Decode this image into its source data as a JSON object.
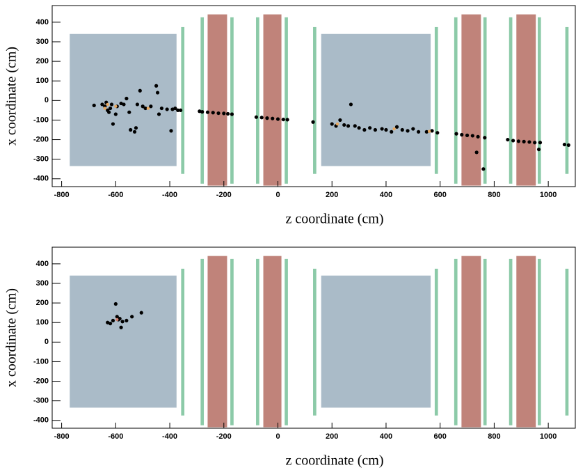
{
  "chart_data": [
    {
      "type": "scatter",
      "x_label": "z coordinate (cm)",
      "y_label": "x coordinate (cm)",
      "xlim": [
        -835,
        1100
      ],
      "ylim": [
        -440,
        485
      ],
      "xticks": [
        -800,
        -600,
        -400,
        -200,
        0,
        200,
        400,
        600,
        800,
        1000
      ],
      "yticks": [
        -400,
        -300,
        -200,
        -100,
        0,
        100,
        200,
        300,
        400
      ],
      "regions": [
        {
          "x": [
            -770,
            -375
          ],
          "y": [
            -335,
            340
          ],
          "color": "#aabbc8"
        },
        {
          "x": [
            160,
            565
          ],
          "y": [
            -335,
            340
          ],
          "color": "#aabbc8"
        },
        {
          "x": [
            -260,
            -188
          ],
          "y": [
            -435,
            440
          ],
          "color": "#c0837a"
        },
        {
          "x": [
            -54,
            13
          ],
          "y": [
            -435,
            440
          ],
          "color": "#c0837a"
        },
        {
          "x": [
            679,
            751
          ],
          "y": [
            -435,
            440
          ],
          "color": "#c0837a"
        },
        {
          "x": [
            882,
            954
          ],
          "y": [
            -435,
            440
          ],
          "color": "#c0837a"
        },
        {
          "x": [
            -358,
            -346
          ],
          "y": [
            -375,
            375
          ],
          "color": "#8ccaa8"
        },
        {
          "x": [
            -286,
            -274
          ],
          "y": [
            -425,
            425
          ],
          "color": "#8ccaa8"
        },
        {
          "x": [
            -176,
            -164
          ],
          "y": [
            -425,
            425
          ],
          "color": "#8ccaa8"
        },
        {
          "x": [
            -81,
            -69
          ],
          "y": [
            -425,
            425
          ],
          "color": "#8ccaa8"
        },
        {
          "x": [
            25,
            37
          ],
          "y": [
            -425,
            425
          ],
          "color": "#8ccaa8"
        },
        {
          "x": [
            130,
            142
          ],
          "y": [
            -375,
            375
          ],
          "color": "#8ccaa8"
        },
        {
          "x": [
            580,
            592
          ],
          "y": [
            -375,
            375
          ],
          "color": "#8ccaa8"
        },
        {
          "x": [
            652,
            664
          ],
          "y": [
            -425,
            425
          ],
          "color": "#8ccaa8"
        },
        {
          "x": [
            760,
            772
          ],
          "y": [
            -425,
            425
          ],
          "color": "#8ccaa8"
        },
        {
          "x": [
            855,
            867
          ],
          "y": [
            -425,
            425
          ],
          "color": "#8ccaa8"
        },
        {
          "x": [
            961,
            973
          ],
          "y": [
            -425,
            425
          ],
          "color": "#8ccaa8"
        },
        {
          "x": [
            1063,
            1075
          ],
          "y": [
            -375,
            375
          ],
          "color": "#8ccaa8"
        }
      ],
      "series": [
        {
          "color": "#000000",
          "x": [
            -680,
            -650,
            -640,
            -635,
            -630,
            -625,
            -620,
            -615,
            -610,
            -600,
            -595,
            -580,
            -570,
            -560,
            -550,
            -545,
            -530,
            -525,
            -520,
            -510,
            -500,
            -490,
            -470,
            -450,
            -445,
            -440,
            -430,
            -410,
            -395,
            -390,
            -380,
            -370,
            -360,
            -290,
            -280,
            -260,
            -240,
            -220,
            -200,
            -185,
            -170,
            -80,
            -60,
            -40,
            -20,
            0,
            20,
            35,
            130,
            200,
            215,
            230,
            245,
            260,
            270,
            285,
            300,
            320,
            340,
            360,
            385,
            400,
            420,
            440,
            460,
            480,
            500,
            520,
            550,
            570,
            590,
            660,
            680,
            700,
            720,
            740,
            735,
            760,
            765,
            850,
            870,
            890,
            910,
            930,
            950,
            965,
            970,
            1060,
            1075
          ],
          "y": [
            -25,
            -20,
            -30,
            -10,
            -50,
            -60,
            -40,
            -20,
            -120,
            -70,
            -30,
            -15,
            -20,
            10,
            -60,
            -150,
            -160,
            -140,
            -20,
            50,
            -30,
            -40,
            -30,
            75,
            40,
            -70,
            -40,
            -45,
            -155,
            -45,
            -40,
            -50,
            -50,
            -55,
            -58,
            -60,
            -62,
            -65,
            -66,
            -68,
            -70,
            -85,
            -87,
            -90,
            -92,
            -95,
            -97,
            -98,
            -110,
            -120,
            -130,
            -100,
            -125,
            -130,
            -20,
            -130,
            -140,
            -150,
            -140,
            -150,
            -145,
            -150,
            -160,
            -135,
            -150,
            -155,
            -145,
            -160,
            -160,
            -155,
            -165,
            -170,
            -175,
            -178,
            -180,
            -185,
            -265,
            -350,
            -190,
            -200,
            -205,
            -208,
            -210,
            -212,
            -215,
            -250,
            -215,
            -225,
            -228
          ]
        },
        {
          "color": "#e8a860",
          "x": [
            -640,
            -630,
            -600,
            -480,
            220,
            430,
            560
          ],
          "y": [
            -40,
            -20,
            -30,
            -40,
            -120,
            -145,
            -158
          ]
        }
      ]
    },
    {
      "type": "scatter",
      "x_label": "z coordinate (cm)",
      "y_label": "x coordinate (cm)",
      "xlim": [
        -835,
        1100
      ],
      "ylim": [
        -440,
        485
      ],
      "xticks": [
        -800,
        -600,
        -400,
        -200,
        0,
        200,
        400,
        600,
        800,
        1000
      ],
      "yticks": [
        -400,
        -300,
        -200,
        -100,
        0,
        100,
        200,
        300,
        400
      ],
      "regions": [
        {
          "x": [
            -770,
            -375
          ],
          "y": [
            -335,
            340
          ],
          "color": "#aabbc8"
        },
        {
          "x": [
            160,
            565
          ],
          "y": [
            -335,
            340
          ],
          "color": "#aabbc8"
        },
        {
          "x": [
            -260,
            -188
          ],
          "y": [
            -435,
            440
          ],
          "color": "#c0837a"
        },
        {
          "x": [
            -54,
            13
          ],
          "y": [
            -435,
            440
          ],
          "color": "#c0837a"
        },
        {
          "x": [
            679,
            751
          ],
          "y": [
            -435,
            440
          ],
          "color": "#c0837a"
        },
        {
          "x": [
            882,
            954
          ],
          "y": [
            -435,
            440
          ],
          "color": "#c0837a"
        },
        {
          "x": [
            -358,
            -346
          ],
          "y": [
            -375,
            375
          ],
          "color": "#8ccaa8"
        },
        {
          "x": [
            -286,
            -274
          ],
          "y": [
            -425,
            425
          ],
          "color": "#8ccaa8"
        },
        {
          "x": [
            -176,
            -164
          ],
          "y": [
            -425,
            425
          ],
          "color": "#8ccaa8"
        },
        {
          "x": [
            -81,
            -69
          ],
          "y": [
            -425,
            425
          ],
          "color": "#8ccaa8"
        },
        {
          "x": [
            25,
            37
          ],
          "y": [
            -425,
            425
          ],
          "color": "#8ccaa8"
        },
        {
          "x": [
            130,
            142
          ],
          "y": [
            -375,
            375
          ],
          "color": "#8ccaa8"
        },
        {
          "x": [
            580,
            592
          ],
          "y": [
            -375,
            375
          ],
          "color": "#8ccaa8"
        },
        {
          "x": [
            652,
            664
          ],
          "y": [
            -425,
            425
          ],
          "color": "#8ccaa8"
        },
        {
          "x": [
            760,
            772
          ],
          "y": [
            -425,
            425
          ],
          "color": "#8ccaa8"
        },
        {
          "x": [
            855,
            867
          ],
          "y": [
            -425,
            425
          ],
          "color": "#8ccaa8"
        },
        {
          "x": [
            961,
            973
          ],
          "y": [
            -425,
            425
          ],
          "color": "#8ccaa8"
        },
        {
          "x": [
            1063,
            1075
          ],
          "y": [
            -375,
            375
          ],
          "color": "#8ccaa8"
        }
      ],
      "series": [
        {
          "color": "#000000",
          "x": [
            -630,
            -620,
            -610,
            -600,
            -595,
            -590,
            -585,
            -580,
            -575,
            -560,
            -540,
            -505
          ],
          "y": [
            100,
            95,
            110,
            195,
            130,
            115,
            120,
            75,
            105,
            110,
            130,
            150
          ]
        },
        {
          "color": "#d08070",
          "x": [
            -595
          ],
          "y": [
            115
          ]
        }
      ]
    }
  ]
}
